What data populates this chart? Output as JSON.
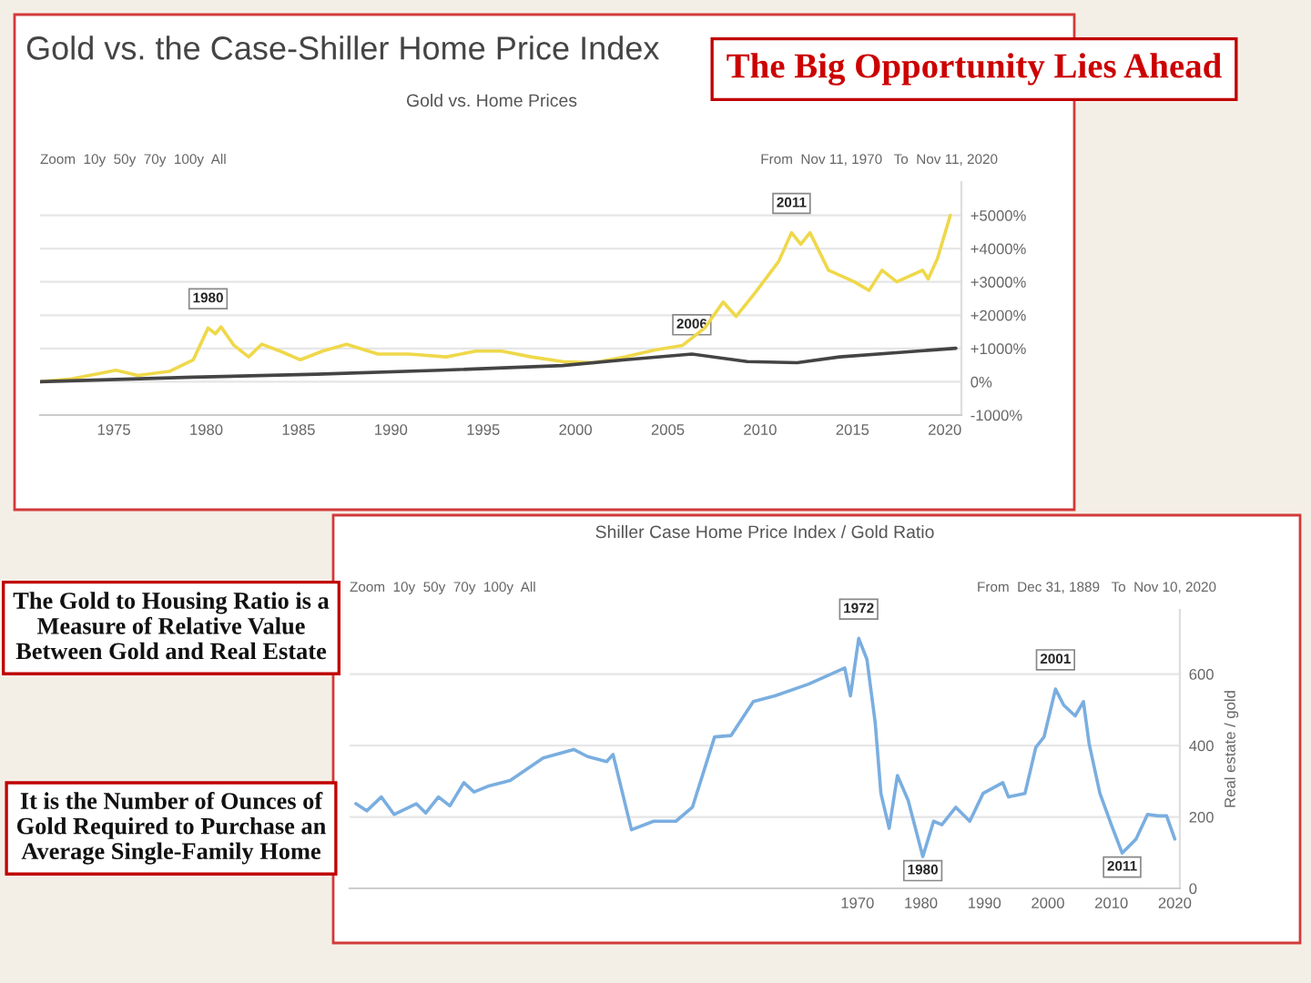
{
  "chart_data": [
    {
      "type": "line",
      "title": "Gold vs. the Case-Shiller Home Price Index",
      "subtitle": "Gold vs. Home Prices",
      "annotations": [
        "Zoom  10y  50y  70y  100y  All",
        "From  Nov 11, 1970   To  Nov 11, 2020",
        {
          "text": "1980",
          "x": 1980.1,
          "y": 1615
        },
        {
          "text": "2006",
          "x": 2006.3,
          "y": 833
        },
        {
          "text": "2011",
          "x": 2011.7,
          "y": 4479
        }
      ],
      "xlim": [
        1971,
        2020.9
      ],
      "xticks": [
        1975,
        1980,
        1985,
        1990,
        1995,
        2000,
        2005,
        2010,
        2015,
        2020
      ],
      "ylim": [
        -1000,
        6000
      ],
      "yticks": [
        {
          "value": -1000,
          "label": "-1000%"
        },
        {
          "value": 0,
          "label": "0%"
        },
        {
          "value": 1000,
          "label": "+1000%"
        },
        {
          "value": 2000,
          "label": "+2000%"
        },
        {
          "value": 3000,
          "label": "+3000%"
        },
        {
          "value": 4000,
          "label": "+4000%"
        },
        {
          "value": 5000,
          "label": "+5000%"
        }
      ],
      "grid": "y",
      "series": [
        {
          "color": "#efd84a",
          "x": [
            1971,
            1972.7,
            1974.3,
            1975.1,
            1976.3,
            1978,
            1979.3,
            1980.1,
            1980.5,
            1980.8,
            1981.5,
            1982.3,
            1983,
            1984,
            1985.1,
            1986.3,
            1987.6,
            1989.3,
            1991,
            1993,
            1994.6,
            1996,
            1997.6,
            1999.3,
            2001,
            2002.7,
            2004.3,
            2005.8,
            2007,
            2008,
            2008.7,
            2009.7,
            2011,
            2011.7,
            2012.2,
            2012.7,
            2013.7,
            2015.1,
            2015.9,
            2016.6,
            2017.4,
            2018.8,
            2019.1,
            2019.6,
            2020.3
          ],
          "values": [
            0,
            87,
            260,
            347,
            191,
            312,
            660,
            1615,
            1441,
            1649,
            1094,
            747,
            1128,
            920,
            660,
            920,
            1128,
            833,
            833,
            747,
            920,
            920,
            747,
            608,
            573,
            747,
            955,
            1094,
            1615,
            2396,
            1962,
            2656,
            3611,
            4479,
            4132,
            4479,
            3351,
            3003,
            2743,
            3351,
            3003,
            3351,
            3090,
            3698,
            5000
          ]
        },
        {
          "color": "#444444",
          "x": [
            1971,
            1979.3,
            1986,
            1992.7,
            1999.3,
            2002.7,
            2006.3,
            2009.3,
            2012,
            2014.3,
            2017.7,
            2020.6
          ],
          "values": [
            0,
            139,
            226,
            347,
            486,
            660,
            833,
            608,
            573,
            747,
            886,
            1007
          ]
        }
      ]
    },
    {
      "type": "line",
      "title": "Shiller Case Home Price Index / Gold Ratio",
      "ylabel": "Real estate / gold",
      "annotations": [
        "Zoom  10y  50y  70y  100y  All",
        "From  Dec 31, 1889   To  Nov 10, 2020",
        {
          "text": "1972",
          "x": 1970.2,
          "y": 700
        },
        {
          "text": "1980",
          "x": 1980.3,
          "y": 89
        },
        {
          "text": "2001",
          "x": 2001.2,
          "y": 558
        },
        {
          "text": "2011",
          "x": 2011.7,
          "y": 99
        }
      ],
      "xlim": [
        1890,
        2020.8
      ],
      "xticks": [
        1970,
        1980,
        1990,
        2000,
        2010,
        2020
      ],
      "ylim": [
        0,
        780
      ],
      "yticks": [
        0,
        200,
        400,
        600
      ],
      "grid": "y",
      "series": [
        {
          "color": "#7aaee0",
          "x": [
            1891,
            1892.7,
            1895,
            1897,
            1900.5,
            1902,
            1904,
            1905.8,
            1908,
            1909.6,
            1911.8,
            1915.3,
            1920.5,
            1925.3,
            1927.5,
            1930.5,
            1931.5,
            1934.4,
            1937.9,
            1941.4,
            1944,
            1947.5,
            1950.1,
            1953.6,
            1957,
            1962.3,
            1968,
            1968.9,
            1970.2,
            1971.5,
            1972.8,
            1973.7,
            1975,
            1976.3,
            1978,
            1980.3,
            1982,
            1983.3,
            1985.5,
            1987.7,
            1989.8,
            1992.9,
            1993.8,
            1996.4,
            1998.1,
            1999.4,
            2001.2,
            2002.5,
            2004.3,
            2005.6,
            2006.5,
            2008.2,
            2010,
            2011.7,
            2013.9,
            2015.7,
            2017.4,
            2018.7,
            2020
          ],
          "values": [
            237,
            217,
            256,
            207,
            237,
            211,
            256,
            231,
            296,
            270,
            286,
            302,
            365,
            389,
            369,
            355,
            375,
            164,
            188,
            188,
            227,
            424,
            428,
            523,
            539,
            572,
            617,
            539,
            700,
            641,
            464,
            266,
            168,
            316,
            246,
            89,
            188,
            178,
            227,
            188,
            266,
            296,
            256,
            266,
            395,
            424,
            558,
            513,
            483,
            523,
            405,
            266,
            178,
            99,
            138,
            207,
            203,
            203,
            138
          ]
        }
      ]
    },
    {
      "type": "other",
      "annotations": [
        "The Big Opportunity Lies Ahead",
        "The Gold to Housing Ratio is a Measure of Relative Value Between Gold and Real Estate",
        "It is the Number of Ounces of Gold Required to Purchase an Average Single-Family Home"
      ]
    }
  ]
}
